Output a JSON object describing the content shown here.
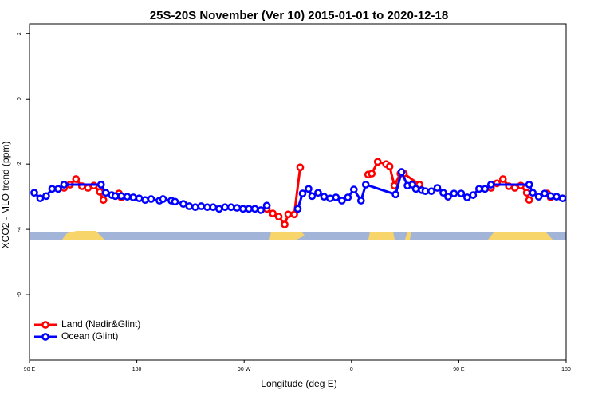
{
  "chart_data": {
    "type": "line",
    "title": "25S-20S November (Ver 10)   2015-01-01 to 2020-12-18",
    "x_label": "Longitude (deg E)",
    "y_label": "XCO2 - MLO trend (ppm)",
    "xlim": [
      90,
      540
    ],
    "ylim": [
      -8,
      2.3
    ],
    "xticks": [
      {
        "value": 90,
        "label": "90 E"
      },
      180,
      {
        "value": 270,
        "label": "90 W"
      },
      {
        "value": 360,
        "label": "0"
      },
      {
        "value": 450,
        "label": "90 E"
      },
      {
        "value": 540,
        "label": "180"
      }
    ],
    "yticks": [
      2,
      0,
      -2,
      -4,
      -6
    ],
    "legend": "bottom left",
    "series": [
      {
        "name": "Land (Nadir&Glint)",
        "color": "#ff0000",
        "x": [
          119,
          124,
          129,
          134,
          139,
          144,
          149,
          152,
          null,
          165,
          167,
          null,
          289,
          294,
          299,
          304,
          307,
          312,
          317,
          null,
          374,
          377,
          382,
          389,
          392,
          396,
          401,
          404,
          417,
          null,
          477,
          482,
          487,
          492,
          497,
          502,
          507,
          509,
          null,
          524,
          527
        ],
        "values": [
          -2.73,
          -2.63,
          -2.46,
          -2.68,
          -2.73,
          -2.66,
          -2.85,
          -3.1,
          null,
          -2.9,
          -3.02,
          null,
          -3.37,
          -3.51,
          -3.61,
          -3.85,
          -3.54,
          -3.54,
          -2.1,
          null,
          -2.32,
          -2.29,
          -1.93,
          -2.0,
          -2.07,
          -2.66,
          -2.29,
          -2.29,
          -2.63,
          null,
          -2.73,
          -2.59,
          -2.46,
          -2.68,
          -2.73,
          -2.66,
          -2.88,
          -3.1,
          null,
          -2.9,
          -3.02
        ]
      },
      {
        "name": "Ocean (Glint)",
        "color": "#0000ff",
        "x": [
          94,
          99,
          104,
          109,
          114,
          119,
          150,
          154,
          159,
          162,
          167,
          172,
          177,
          182,
          187,
          192,
          199,
          202,
          209,
          212,
          219,
          224,
          229,
          234,
          239,
          244,
          249,
          254,
          259,
          264,
          269,
          274,
          279,
          284,
          289,
          null,
          315,
          319,
          324,
          327,
          332,
          337,
          342,
          347,
          352,
          357,
          362,
          368,
          372,
          397,
          402,
          407,
          411,
          414,
          419,
          422,
          427,
          432,
          437,
          441,
          446,
          452,
          457,
          462,
          467,
          472,
          477,
          509,
          512,
          517,
          522,
          527,
          532,
          537
        ],
        "values": [
          -2.88,
          -3.05,
          -2.98,
          -2.76,
          -2.76,
          -2.63,
          -2.63,
          -2.88,
          -2.95,
          -2.98,
          -2.98,
          -3.0,
          -3.02,
          -3.05,
          -3.1,
          -3.07,
          -3.12,
          -3.07,
          -3.12,
          -3.15,
          -3.22,
          -3.29,
          -3.32,
          -3.29,
          -3.32,
          -3.32,
          -3.37,
          -3.32,
          -3.32,
          -3.34,
          -3.37,
          -3.37,
          -3.37,
          -3.41,
          -3.27,
          null,
          -3.37,
          -2.9,
          -2.76,
          -2.98,
          -2.88,
          -3.0,
          -3.05,
          -3.02,
          -3.12,
          -3.02,
          -2.78,
          -3.12,
          -2.63,
          -2.93,
          -2.24,
          -2.66,
          -2.63,
          -2.76,
          -2.8,
          -2.83,
          -2.83,
          -2.73,
          -2.88,
          -3.0,
          -2.9,
          -2.9,
          -3.02,
          -2.95,
          -2.76,
          -2.76,
          -2.63,
          -2.63,
          -2.88,
          -3.0,
          -2.9,
          -2.98,
          -3.0,
          -3.05
        ]
      }
    ]
  }
}
